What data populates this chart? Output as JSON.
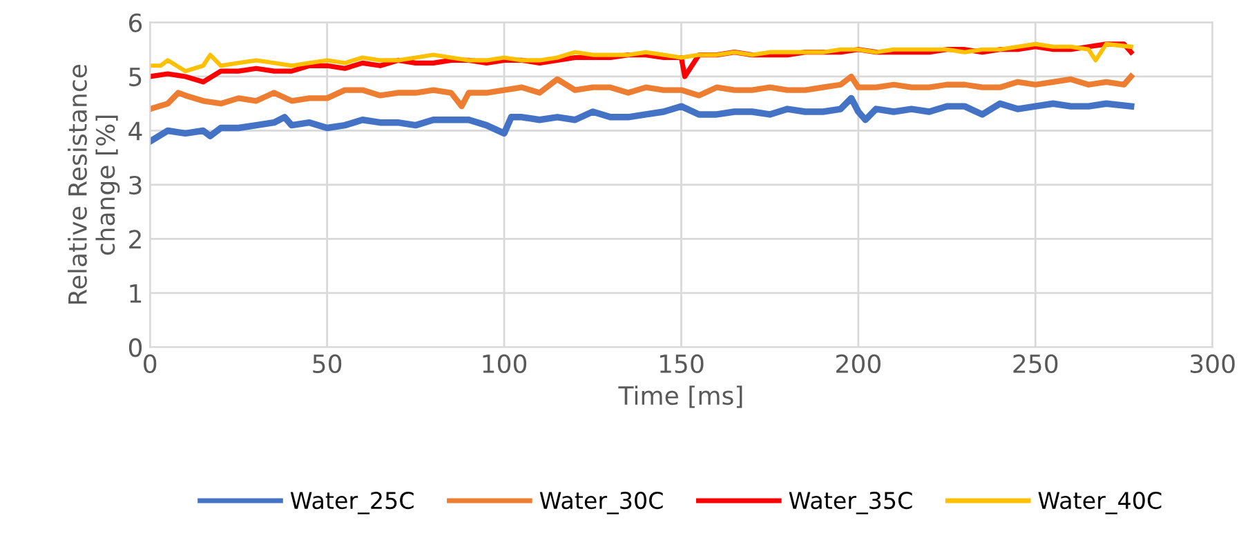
{
  "chart_data": {
    "type": "line",
    "xlabel": "Time [ms]",
    "ylabel": "Relative Resistance\nchange [%]",
    "xlim": [
      0,
      300
    ],
    "ylim": [
      0,
      6
    ],
    "xticks": [
      0,
      50,
      100,
      150,
      200,
      250,
      300
    ],
    "yticks": [
      0,
      1,
      2,
      3,
      4,
      5,
      6
    ],
    "grid": true,
    "legend": "bottom",
    "marker": "none",
    "line_style": "solid",
    "series": [
      {
        "name": "Water_25C",
        "color": "#4472c4",
        "x": [
          0,
          5,
          10,
          15,
          17,
          20,
          25,
          30,
          35,
          38,
          40,
          45,
          50,
          55,
          60,
          65,
          70,
          75,
          80,
          85,
          90,
          95,
          100,
          102,
          105,
          110,
          115,
          120,
          125,
          130,
          135,
          140,
          145,
          150,
          155,
          160,
          165,
          170,
          175,
          180,
          185,
          190,
          195,
          198,
          200,
          202,
          205,
          210,
          215,
          220,
          225,
          230,
          235,
          240,
          245,
          250,
          255,
          260,
          265,
          270,
          277
        ],
        "values": [
          3.8,
          4.0,
          3.95,
          4.0,
          3.9,
          4.05,
          4.05,
          4.1,
          4.15,
          4.25,
          4.1,
          4.15,
          4.05,
          4.1,
          4.2,
          4.15,
          4.15,
          4.1,
          4.2,
          4.2,
          4.2,
          4.1,
          3.95,
          4.25,
          4.25,
          4.2,
          4.25,
          4.2,
          4.35,
          4.25,
          4.25,
          4.3,
          4.35,
          4.45,
          4.3,
          4.3,
          4.35,
          4.35,
          4.3,
          4.4,
          4.35,
          4.35,
          4.4,
          4.6,
          4.35,
          4.2,
          4.4,
          4.35,
          4.4,
          4.35,
          4.45,
          4.45,
          4.3,
          4.5,
          4.4,
          4.45,
          4.5,
          4.45,
          4.45,
          4.5,
          4.45
        ]
      },
      {
        "name": "Water_30C",
        "color": "#ed7d31",
        "x": [
          0,
          5,
          8,
          10,
          15,
          20,
          25,
          30,
          35,
          40,
          45,
          50,
          55,
          60,
          65,
          70,
          75,
          80,
          85,
          88,
          90,
          95,
          100,
          105,
          110,
          115,
          120,
          125,
          130,
          135,
          140,
          145,
          150,
          155,
          160,
          165,
          170,
          175,
          180,
          185,
          190,
          195,
          198,
          200,
          205,
          210,
          215,
          220,
          225,
          230,
          235,
          240,
          245,
          250,
          255,
          260,
          265,
          270,
          275,
          277
        ],
        "values": [
          4.4,
          4.5,
          4.7,
          4.65,
          4.55,
          4.5,
          4.6,
          4.55,
          4.7,
          4.55,
          4.6,
          4.6,
          4.75,
          4.75,
          4.65,
          4.7,
          4.7,
          4.75,
          4.7,
          4.45,
          4.7,
          4.7,
          4.75,
          4.8,
          4.7,
          4.95,
          4.75,
          4.8,
          4.8,
          4.7,
          4.8,
          4.75,
          4.75,
          4.65,
          4.8,
          4.75,
          4.75,
          4.8,
          4.75,
          4.75,
          4.8,
          4.85,
          5.0,
          4.8,
          4.8,
          4.85,
          4.8,
          4.8,
          4.85,
          4.85,
          4.8,
          4.8,
          4.9,
          4.85,
          4.9,
          4.95,
          4.85,
          4.9,
          4.85,
          5.0
        ]
      },
      {
        "name": "Water_35C",
        "color": "#ff0000",
        "x": [
          0,
          5,
          10,
          15,
          20,
          25,
          30,
          35,
          40,
          45,
          50,
          55,
          60,
          65,
          70,
          75,
          80,
          85,
          90,
          95,
          100,
          105,
          110,
          115,
          120,
          125,
          130,
          135,
          140,
          145,
          150,
          151,
          155,
          160,
          165,
          170,
          175,
          180,
          185,
          190,
          195,
          200,
          205,
          210,
          215,
          220,
          225,
          230,
          235,
          240,
          245,
          250,
          255,
          260,
          265,
          270,
          275,
          277
        ],
        "values": [
          5.0,
          5.05,
          5.0,
          4.9,
          5.1,
          5.1,
          5.15,
          5.1,
          5.1,
          5.2,
          5.2,
          5.15,
          5.25,
          5.2,
          5.3,
          5.25,
          5.25,
          5.3,
          5.3,
          5.25,
          5.3,
          5.3,
          5.25,
          5.3,
          5.35,
          5.35,
          5.35,
          5.4,
          5.4,
          5.35,
          5.35,
          5.0,
          5.4,
          5.4,
          5.45,
          5.4,
          5.4,
          5.4,
          5.45,
          5.45,
          5.45,
          5.5,
          5.45,
          5.45,
          5.45,
          5.45,
          5.5,
          5.5,
          5.45,
          5.5,
          5.5,
          5.55,
          5.5,
          5.5,
          5.55,
          5.6,
          5.6,
          5.45
        ]
      },
      {
        "name": "Water_40C",
        "color": "#ffc000",
        "x": [
          0,
          3,
          5,
          10,
          15,
          17,
          20,
          25,
          30,
          35,
          40,
          45,
          50,
          55,
          60,
          65,
          70,
          75,
          80,
          85,
          90,
          95,
          100,
          105,
          110,
          115,
          120,
          125,
          130,
          135,
          140,
          145,
          150,
          155,
          160,
          165,
          170,
          175,
          180,
          185,
          190,
          195,
          200,
          205,
          210,
          215,
          220,
          225,
          230,
          235,
          240,
          245,
          250,
          255,
          260,
          265,
          267,
          270,
          277
        ],
        "values": [
          5.2,
          5.2,
          5.3,
          5.1,
          5.2,
          5.4,
          5.2,
          5.25,
          5.3,
          5.25,
          5.2,
          5.25,
          5.3,
          5.25,
          5.35,
          5.3,
          5.3,
          5.35,
          5.4,
          5.35,
          5.3,
          5.3,
          5.35,
          5.3,
          5.3,
          5.35,
          5.45,
          5.4,
          5.4,
          5.4,
          5.45,
          5.4,
          5.35,
          5.4,
          5.4,
          5.45,
          5.4,
          5.45,
          5.45,
          5.45,
          5.45,
          5.5,
          5.5,
          5.45,
          5.5,
          5.5,
          5.5,
          5.5,
          5.45,
          5.5,
          5.5,
          5.55,
          5.6,
          5.55,
          5.55,
          5.5,
          5.3,
          5.6,
          5.55
        ]
      }
    ]
  }
}
